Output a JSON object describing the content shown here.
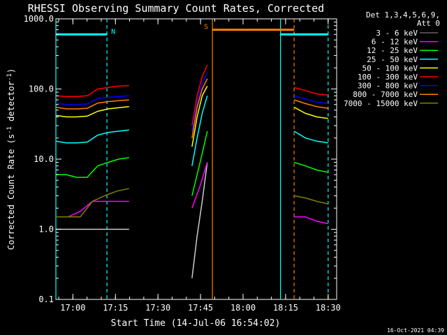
{
  "chart_data": {
    "type": "line",
    "title": "RHESSI Observing Summary Count Rates, Corrected",
    "xlabel": "Start Time (14-Jul-06 16:54:02)",
    "ylabel": "Corrected Count Rate (s",
    "ylabel_sup1": "-1",
    "ylabel_mid": " detector",
    "ylabel_sup2": "-1",
    "ylabel_end": ")",
    "yscale": "log",
    "ylim": [
      0.1,
      1000
    ],
    "y_ticks": [
      {
        "v": 0.1,
        "label": "0.1"
      },
      {
        "v": 1,
        "label": "1.0"
      },
      {
        "v": 10,
        "label": "10.0"
      },
      {
        "v": 100,
        "label": "100.0"
      },
      {
        "v": 1000,
        "label": "1000.0"
      }
    ],
    "xlim_min": [
      16.9,
      18.55
    ],
    "x_ticks": [
      {
        "v": 17.0,
        "label": "17:00"
      },
      {
        "v": 17.25,
        "label": "17:15"
      },
      {
        "v": 17.5,
        "label": "17:30"
      },
      {
        "v": 17.75,
        "label": "17:45"
      },
      {
        "v": 18.0,
        "label": "18:00"
      },
      {
        "v": 18.25,
        "label": "18:15"
      },
      {
        "v": 18.5,
        "label": "18:30"
      }
    ],
    "legend": {
      "header": [
        "Det 1,3,4,5,6,9,",
        "Att 0"
      ],
      "placement": "right"
    },
    "series": [
      {
        "name": "3 - 6 keV",
        "color": "#000000",
        "seg1": [
          1,
          1,
          1,
          1,
          1
        ],
        "seg2": [
          0.2,
          0.8,
          2.5,
          9.0
        ],
        "seg3": []
      },
      {
        "name": "6 - 12 keV",
        "color": "#ff00ff",
        "seg1": [
          1.5,
          1.5,
          1.8,
          2.5,
          2.5,
          2.5,
          2.5
        ],
        "seg2": [
          2.0,
          4.0,
          9.0
        ],
        "seg3": [
          1.5,
          1.5,
          1.3,
          1.2
        ]
      },
      {
        "name": "12 - 25 keV",
        "color": "#00ff00",
        "seg1": [
          6.0,
          6.0,
          5.5,
          5.5,
          8.0,
          9.0,
          10.0,
          10.5
        ],
        "seg2": [
          3.0,
          6.0,
          12.0,
          25.0
        ],
        "seg3": [
          9.0,
          8.0,
          7.0,
          6.5
        ]
      },
      {
        "name": "25 - 50 keV",
        "color": "#00ffff",
        "seg1": [
          18.0,
          17.0,
          17.0,
          17.5,
          22.0,
          24.0,
          25.0,
          26.0
        ],
        "seg2": [
          8.0,
          20.0,
          45.0,
          80.0
        ],
        "seg3": [
          25.0,
          20.0,
          18.0,
          17.0
        ]
      },
      {
        "name": "50 - 100 keV",
        "color": "#ffff00",
        "seg1": [
          42.0,
          40.0,
          40.0,
          41.0,
          48.0,
          52.0,
          54.0,
          56.0
        ],
        "seg2": [
          15.0,
          40.0,
          80.0,
          110.0
        ],
        "seg3": [
          55.0,
          45.0,
          40.0,
          38.0
        ]
      },
      {
        "name": "100 - 300 keV",
        "color": "#ff0000",
        "seg1": [
          80.0,
          78.0,
          78.0,
          80.0,
          100.0,
          105.0,
          110.0,
          112.0
        ],
        "seg2": [
          30.0,
          80.0,
          150.0,
          220.0
        ],
        "seg3": [
          105.0,
          95.0,
          85.0,
          82.0
        ]
      },
      {
        "name": "300 - 800 keV",
        "color": "#0000ff",
        "seg1": [
          63.0,
          60.0,
          60.0,
          61.0,
          73.0,
          76.0,
          78.0,
          80.0
        ],
        "seg2": [
          25.0,
          65.0,
          120.0,
          170.0
        ],
        "seg3": [
          80.0,
          72.0,
          65.0,
          62.0
        ]
      },
      {
        "name": "800 - 7000 keV",
        "color": "#ff7f00",
        "seg1": [
          55.0,
          52.0,
          52.0,
          53.0,
          63.0,
          66.0,
          68.0,
          70.0
        ],
        "seg2": [
          20.0,
          55.0,
          100.0,
          140.0
        ],
        "seg3": [
          70.0,
          62.0,
          56.0,
          53.0
        ]
      },
      {
        "name": "7000 - 15000 keV",
        "color": "#808000",
        "seg1": [
          1.5,
          1.5,
          1.5,
          2.5,
          3.0,
          3.5,
          3.8
        ],
        "seg2": [],
        "seg3": [
          3.0,
          2.8,
          2.5,
          2.3
        ]
      }
    ],
    "segments": {
      "seg1": [
        16.9,
        17.33
      ],
      "seg2": [
        17.7,
        17.79
      ],
      "seg3": [
        18.3,
        18.5
      ]
    },
    "flag_bars": [
      {
        "label": "N",
        "color": "#00ffff",
        "y": 600,
        "x0": 16.9,
        "x1": 17.2
      },
      {
        "label": "",
        "color": "#00ffff",
        "y": 600,
        "x0": 18.22,
        "x1": 18.5
      },
      {
        "label": "S",
        "color": "#ff7f00",
        "y": 700,
        "x0": 17.82,
        "x1": 18.3
      }
    ],
    "vlines": [
      {
        "x": 16.9,
        "color": "#00ffff",
        "style": "solid"
      },
      {
        "x": 17.2,
        "color": "#00ffff",
        "style": "dashed"
      },
      {
        "x": 17.82,
        "color": "#ff7f00",
        "style": "solid"
      },
      {
        "x": 18.22,
        "color": "#00ffff",
        "style": "solid"
      },
      {
        "x": 18.3,
        "color": "#ff7f00",
        "style": "dashed"
      },
      {
        "x": 18.5,
        "color": "#00ffff",
        "style": "dashed"
      }
    ],
    "footer": "16-Oct-2021 04:39"
  }
}
